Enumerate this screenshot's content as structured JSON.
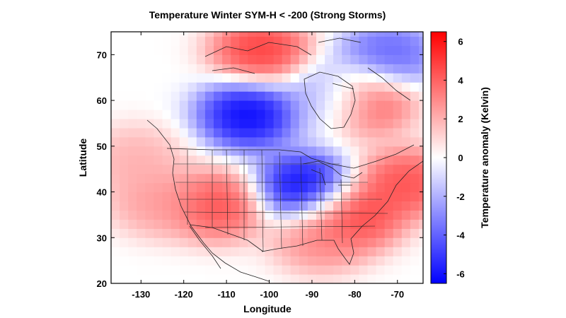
{
  "chart_data": {
    "type": "heatmap",
    "title": "Temperature Winter  SYM-H < -200 (Strong Storms)",
    "xlabel": "Longitude",
    "ylabel": "Latitude",
    "xlim": [
      -137,
      -64
    ],
    "ylim": [
      20,
      75
    ],
    "x_ticks": [
      -130,
      -120,
      -110,
      -100,
      -90,
      -80,
      -70
    ],
    "x_tick_labels": [
      "-130",
      "-120",
      "-110",
      "-100",
      "-90",
      "-80",
      "-70"
    ],
    "y_ticks": [
      20,
      30,
      40,
      50,
      60,
      70
    ],
    "y_tick_labels": [
      "20",
      "30",
      "40",
      "50",
      "60",
      "70"
    ],
    "colorbar": {
      "label": "Temperature anomaly (Kelvin)",
      "range": [
        -6.5,
        6.5
      ],
      "ticks": [
        -6,
        -4,
        -2,
        0,
        2,
        4,
        6
      ],
      "tick_labels": [
        "-6",
        "-4",
        "-2",
        "0",
        "2",
        "4",
        "6"
      ],
      "colors": {
        "low": "#0000ff",
        "mid": "#ffffff",
        "high": "#ff0000"
      }
    },
    "grid": false,
    "basemap": "North America coastlines and US state boundaries",
    "regions": [
      {
        "name": "arctic-red",
        "lon": -102,
        "lat": 71,
        "value": 5
      },
      {
        "name": "canada-blue",
        "lon": -105,
        "lat": 57,
        "value": -6.5
      },
      {
        "name": "us-plains-blue",
        "lon": -92,
        "lat": 41,
        "value": -6.5
      },
      {
        "name": "southwest-red",
        "lon": -112,
        "lat": 37,
        "value": 4.5
      },
      {
        "name": "west-coast-red",
        "lon": -126,
        "lat": 38,
        "value": 2.5
      },
      {
        "name": "pacific-nw-red",
        "lon": -131,
        "lat": 47,
        "value": 2
      },
      {
        "name": "carolina-red",
        "lon": -80,
        "lat": 35,
        "value": 5
      },
      {
        "name": "gulf-coast-red",
        "lon": -88,
        "lat": 30,
        "value": 3
      },
      {
        "name": "atlantic-red",
        "lon": -68,
        "lat": 42,
        "value": 4.5
      },
      {
        "name": "labrador-red",
        "lon": -78,
        "lat": 60,
        "value": 5
      },
      {
        "name": "greenland-blue",
        "lon": -72,
        "lat": 70,
        "value": -4
      },
      {
        "name": "hudson-light-blue",
        "lon": -85,
        "lat": 61,
        "value": -3
      }
    ]
  }
}
